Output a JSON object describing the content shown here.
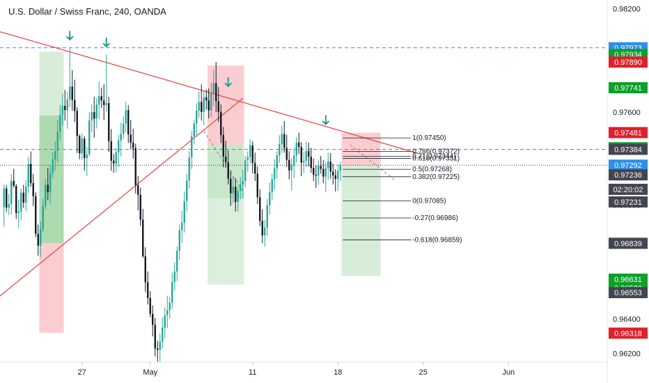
{
  "header": {
    "title": "U.S. Dollar / Swiss Franc, 240, OANDA"
  },
  "colors": {
    "up": "#26a69a",
    "down": "#131722",
    "trend": "#e5403a",
    "hline": "#2d8fe6",
    "green_zone": "#4caf50",
    "red_zone": "#f23645",
    "arrow": "#1e9c8a"
  },
  "chart_data": {
    "type": "candlestick",
    "symbol": "U.S. Dollar / Swiss Franc",
    "timeframe": "240",
    "source": "OANDA",
    "y_range": [
      0.9615,
      0.9825
    ],
    "y_ticks": [
      {
        "value": 0.982,
        "label": "0.98200"
      },
      {
        "value": 0.976,
        "label": "0.97600"
      },
      {
        "value": 0.9706,
        "label": "0.97060"
      },
      {
        "value": 0.964,
        "label": "0.96400"
      },
      {
        "value": 0.962,
        "label": "0.96200"
      }
    ],
    "x_ticks": [
      {
        "index": 32,
        "label": "27"
      },
      {
        "index": 60,
        "label": "May"
      },
      {
        "index": 102,
        "label": "11"
      },
      {
        "index": 137,
        "label": "18"
      },
      {
        "index": 172,
        "label": "25"
      },
      {
        "index": 207,
        "label": "Jun"
      }
    ],
    "price_badges": [
      {
        "value": 0.97973,
        "label": "0.97973",
        "color": "#2d8fe6"
      },
      {
        "value": 0.97934,
        "label": "0.97934",
        "color": "#0e9f2c"
      },
      {
        "value": 0.9789,
        "label": "0.97890",
        "color": "#e0202b"
      },
      {
        "value": 0.97741,
        "label": "0.97741",
        "color": "#0e9f2c"
      },
      {
        "value": 0.97481,
        "label": "0.97481",
        "color": "#e0202b"
      },
      {
        "value": 0.97393,
        "label": "0.97393",
        "color": "#0e9f2c"
      },
      {
        "value": 0.97384,
        "label": "0.97384",
        "color": "#434651"
      },
      {
        "value": 0.97292,
        "label": "0.97292",
        "color": "#2d8fe6"
      },
      {
        "value": 0.97236,
        "label": "0.97236",
        "color": "#434651"
      },
      {
        "value": 0.97152,
        "label": "02:20:02",
        "color": "#434651"
      },
      {
        "value": 0.97079,
        "label": "0.97231",
        "color": "#434651"
      },
      {
        "value": 0.96839,
        "label": "0.96839",
        "color": "#434651"
      },
      {
        "value": 0.96631,
        "label": "0.96631",
        "color": "#0e9f2c"
      },
      {
        "value": 0.9658,
        "label": "0.96580",
        "color": "#0e9f2c"
      },
      {
        "value": 0.96553,
        "label": "0.96553",
        "color": "#434651"
      },
      {
        "value": 0.96318,
        "label": "0.96318",
        "color": "#e0202b"
      }
    ],
    "h_lines": [
      0.97973,
      0.97384
    ],
    "current_price": 0.97292,
    "fib": {
      "x_start": 139,
      "x_end": 167,
      "levels": [
        {
          "value": 0.9745,
          "label": "1(0.97450)"
        },
        {
          "value": 0.97372,
          "label": "0.786(0.97372)"
        },
        {
          "value": 0.97344,
          "label": "0.71(0.97344)"
        },
        {
          "value": 0.97331,
          "label": "0.618(0.97331)"
        },
        {
          "value": 0.97268,
          "label": "0.5(0.97268)"
        },
        {
          "value": 0.97225,
          "label": "0.382(0.97225)"
        },
        {
          "value": 0.97085,
          "label": "0(0.97085)"
        },
        {
          "value": 0.96986,
          "label": "-0.27(0.96986)"
        },
        {
          "value": 0.96859,
          "label": "-0.618(0.96859)"
        }
      ]
    },
    "trendlines": [
      {
        "from": [
          -15,
          0.9812
        ],
        "to": [
          22,
          0.9797
        ]
      },
      {
        "from": [
          22,
          0.9797
        ],
        "to": [
          170,
          0.9736
        ]
      },
      {
        "from": [
          -15,
          0.9638
        ],
        "to": [
          98,
          0.9768
        ]
      }
    ],
    "dashed_path": [
      [
        82,
        0.9749
      ],
      [
        98,
        0.9714
      ]
    ],
    "dashed_path_2": [
      [
        142,
        0.9741
      ],
      [
        160,
        0.9721
      ]
    ],
    "position_zones": [
      {
        "x0": 15,
        "x1": 24,
        "y0": 0.9795,
        "y1": 0.9684,
        "color": "green",
        "opacity": 0.22
      },
      {
        "x0": 15,
        "x1": 24,
        "y0": 0.9758,
        "y1": 0.9684,
        "color": "green",
        "opacity": 0.3
      },
      {
        "x0": 15,
        "x1": 24,
        "y0": 0.9684,
        "y1": 0.9632,
        "color": "red",
        "opacity": 0.25
      },
      {
        "x0": 84,
        "x1": 98,
        "y0": 0.9787,
        "y1": 0.9741,
        "color": "red",
        "opacity": 0.25
      },
      {
        "x0": 84,
        "x1": 98,
        "y0": 0.9741,
        "y1": 0.971,
        "color": "green",
        "opacity": 0.3
      },
      {
        "x0": 84,
        "x1": 98,
        "y0": 0.971,
        "y1": 0.966,
        "color": "green",
        "opacity": 0.2
      },
      {
        "x0": 139,
        "x1": 154,
        "y0": 0.9748,
        "y1": 0.9729,
        "color": "red",
        "opacity": 0.25
      },
      {
        "x0": 139,
        "x1": 154,
        "y0": 0.9729,
        "y1": 0.9665,
        "color": "green",
        "opacity": 0.22
      }
    ],
    "arrows": [
      {
        "index": 27,
        "value": 0.9802
      },
      {
        "index": 42,
        "value": 0.9798
      },
      {
        "index": 92,
        "value": 0.9775
      },
      {
        "index": 132,
        "value": 0.9753
      }
    ],
    "candles": [
      [
        0.97048,
        0.9718,
        0.96936,
        0.97157
      ],
      [
        0.97157,
        0.97175,
        0.97022,
        0.97046
      ],
      [
        0.97046,
        0.97125,
        0.97002,
        0.97066
      ],
      [
        0.97066,
        0.9724,
        0.97006,
        0.97201
      ],
      [
        0.97201,
        0.9727,
        0.97161,
        0.97172
      ],
      [
        0.97172,
        0.97183,
        0.9698,
        0.97014
      ],
      [
        0.97014,
        0.97093,
        0.96927,
        0.97023
      ],
      [
        0.97023,
        0.97156,
        0.96972,
        0.97133
      ],
      [
        0.97133,
        0.97178,
        0.97045,
        0.97075
      ],
      [
        0.97075,
        0.97205,
        0.97026,
        0.97168
      ],
      [
        0.97168,
        0.9734,
        0.9713,
        0.97299
      ],
      [
        0.97299,
        0.97371,
        0.97167,
        0.97188
      ],
      [
        0.97188,
        0.97242,
        0.97055,
        0.97112
      ],
      [
        0.97112,
        0.97135,
        0.96874,
        0.96894
      ],
      [
        0.96894,
        0.96948,
        0.96767,
        0.96825
      ],
      [
        0.96825,
        0.96966,
        0.96758,
        0.96922
      ],
      [
        0.96922,
        0.97099,
        0.96901,
        0.97057
      ],
      [
        0.97057,
        0.97214,
        0.97036,
        0.97178
      ],
      [
        0.97178,
        0.97276,
        0.97088,
        0.97135
      ],
      [
        0.97135,
        0.9729,
        0.97063,
        0.97248
      ],
      [
        0.97248,
        0.97367,
        0.97215,
        0.97326
      ],
      [
        0.97326,
        0.97432,
        0.97262,
        0.97375
      ],
      [
        0.97375,
        0.97555,
        0.97308,
        0.97487
      ],
      [
        0.97487,
        0.97641,
        0.97437,
        0.97583
      ],
      [
        0.97583,
        0.97706,
        0.97525,
        0.97636
      ],
      [
        0.97636,
        0.97728,
        0.97551,
        0.97611
      ],
      [
        0.97611,
        0.97717,
        0.97504,
        0.97673
      ],
      [
        0.97673,
        0.97973,
        0.97628,
        0.97748
      ],
      [
        0.97748,
        0.97844,
        0.97608,
        0.9767
      ],
      [
        0.9767,
        0.97788,
        0.97542,
        0.97607
      ],
      [
        0.97607,
        0.97629,
        0.97362,
        0.97461
      ],
      [
        0.97461,
        0.97471,
        0.97326,
        0.97361
      ],
      [
        0.97361,
        0.97476,
        0.97324,
        0.97446
      ],
      [
        0.97446,
        0.97461,
        0.97259,
        0.97333
      ],
      [
        0.97333,
        0.97398,
        0.9723,
        0.97355
      ],
      [
        0.97355,
        0.976,
        0.9734,
        0.97552
      ],
      [
        0.97552,
        0.97644,
        0.97483,
        0.976
      ],
      [
        0.976,
        0.9769,
        0.97452,
        0.97562
      ],
      [
        0.97562,
        0.97681,
        0.97505,
        0.97643
      ],
      [
        0.97643,
        0.97777,
        0.97557,
        0.97692
      ],
      [
        0.97692,
        0.97742,
        0.97624,
        0.97667
      ],
      [
        0.97667,
        0.97761,
        0.97553,
        0.97641
      ],
      [
        0.97641,
        0.97934,
        0.97601,
        0.97652
      ],
      [
        0.97652,
        0.97688,
        0.97368,
        0.97431
      ],
      [
        0.97431,
        0.97502,
        0.9726,
        0.97318
      ],
      [
        0.97318,
        0.97357,
        0.97248,
        0.97302
      ],
      [
        0.97302,
        0.97391,
        0.97248,
        0.97367
      ],
      [
        0.97367,
        0.97467,
        0.9728,
        0.97436
      ],
      [
        0.97436,
        0.97539,
        0.97342,
        0.97474
      ],
      [
        0.97474,
        0.97576,
        0.97446,
        0.97533
      ],
      [
        0.97533,
        0.9766,
        0.97482,
        0.97611
      ],
      [
        0.97611,
        0.9764,
        0.97421,
        0.9747
      ],
      [
        0.9747,
        0.97555,
        0.97384,
        0.97423
      ],
      [
        0.97423,
        0.97504,
        0.97331,
        0.97391
      ],
      [
        0.97391,
        0.97416,
        0.97128,
        0.97177
      ],
      [
        0.97177,
        0.97229,
        0.9703,
        0.9712
      ],
      [
        0.9712,
        0.97162,
        0.9694,
        0.96976
      ],
      [
        0.96976,
        0.97039,
        0.96754,
        0.96764
      ],
      [
        0.96764,
        0.96816,
        0.96556,
        0.96613
      ],
      [
        0.96613,
        0.96676,
        0.96484,
        0.96522
      ],
      [
        0.96522,
        0.96561,
        0.9641,
        0.9643
      ],
      [
        0.9643,
        0.96478,
        0.96299,
        0.96366
      ],
      [
        0.96366,
        0.96407,
        0.96183,
        0.96229
      ],
      [
        0.96229,
        0.96274,
        0.96123,
        0.96221
      ],
      [
        0.96221,
        0.96313,
        0.96136,
        0.96269
      ],
      [
        0.96269,
        0.9641,
        0.96228,
        0.9635
      ],
      [
        0.9635,
        0.96466,
        0.96288,
        0.96422
      ],
      [
        0.96422,
        0.96535,
        0.96347,
        0.96451
      ],
      [
        0.96451,
        0.96527,
        0.96403,
        0.96495
      ],
      [
        0.96495,
        0.96669,
        0.96459,
        0.96615
      ],
      [
        0.96615,
        0.96728,
        0.96567,
        0.96675
      ],
      [
        0.96675,
        0.9682,
        0.9662,
        0.96796
      ],
      [
        0.96796,
        0.96948,
        0.96741,
        0.96915
      ],
      [
        0.96915,
        0.97027,
        0.96842,
        0.9696
      ],
      [
        0.9696,
        0.97139,
        0.96901,
        0.97084
      ],
      [
        0.97084,
        0.97243,
        0.97024,
        0.97202
      ],
      [
        0.97202,
        0.97372,
        0.97158,
        0.97337
      ],
      [
        0.97337,
        0.9749,
        0.9727,
        0.97459
      ],
      [
        0.97459,
        0.97556,
        0.97412,
        0.97535
      ],
      [
        0.97535,
        0.97652,
        0.97467,
        0.97608
      ],
      [
        0.97608,
        0.9772,
        0.97567,
        0.97659
      ],
      [
        0.97659,
        0.97761,
        0.97551,
        0.97601
      ],
      [
        0.97601,
        0.97728,
        0.97526,
        0.97686
      ],
      [
        0.97686,
        0.97731,
        0.97615,
        0.97667
      ],
      [
        0.97667,
        0.97737,
        0.97563,
        0.9761
      ],
      [
        0.9761,
        0.9777,
        0.97571,
        0.97709
      ],
      [
        0.97709,
        0.97847,
        0.97633,
        0.97768
      ],
      [
        0.97768,
        0.9789,
        0.97599,
        0.97663
      ],
      [
        0.97663,
        0.97745,
        0.97543,
        0.97601
      ],
      [
        0.97601,
        0.97645,
        0.97421,
        0.97467
      ],
      [
        0.97467,
        0.97514,
        0.9728,
        0.97342
      ],
      [
        0.97342,
        0.97434,
        0.97276,
        0.97309
      ],
      [
        0.97309,
        0.97377,
        0.9718,
        0.97214
      ],
      [
        0.97214,
        0.97262,
        0.97057,
        0.97129
      ],
      [
        0.97129,
        0.97224,
        0.97072,
        0.97167
      ],
      [
        0.97167,
        0.97217,
        0.97023,
        0.97079
      ],
      [
        0.97079,
        0.97167,
        0.97024,
        0.97143
      ],
      [
        0.97143,
        0.97222,
        0.97094,
        0.9718
      ],
      [
        0.9718,
        0.97264,
        0.97099,
        0.97201
      ],
      [
        0.97201,
        0.97345,
        0.97165,
        0.97321
      ],
      [
        0.97321,
        0.97372,
        0.97251,
        0.97339
      ],
      [
        0.97339,
        0.9744,
        0.97301,
        0.97407
      ],
      [
        0.97407,
        0.9743,
        0.97244,
        0.97305
      ],
      [
        0.97305,
        0.97365,
        0.972,
        0.97243
      ],
      [
        0.97243,
        0.97284,
        0.97067,
        0.97106
      ],
      [
        0.97106,
        0.97152,
        0.96938,
        0.96969
      ],
      [
        0.96969,
        0.97036,
        0.9684,
        0.96885
      ],
      [
        0.96885,
        0.96973,
        0.9682,
        0.96931
      ],
      [
        0.96931,
        0.97095,
        0.96881,
        0.97059
      ],
      [
        0.97059,
        0.97193,
        0.97005,
        0.97137
      ],
      [
        0.97137,
        0.97243,
        0.9709,
        0.97212
      ],
      [
        0.97212,
        0.97326,
        0.9715,
        0.97274
      ],
      [
        0.97274,
        0.97372,
        0.97215,
        0.97349
      ],
      [
        0.97349,
        0.97466,
        0.97304,
        0.97414
      ],
      [
        0.97414,
        0.97522,
        0.97363,
        0.97473
      ],
      [
        0.97473,
        0.97548,
        0.97364,
        0.97392
      ],
      [
        0.97392,
        0.97468,
        0.97282,
        0.97323
      ],
      [
        0.97323,
        0.97373,
        0.9721,
        0.97262
      ],
      [
        0.97262,
        0.97333,
        0.97145,
        0.97292
      ],
      [
        0.97292,
        0.97394,
        0.97218,
        0.97348
      ],
      [
        0.97348,
        0.97453,
        0.97307,
        0.97423
      ],
      [
        0.97423,
        0.97481,
        0.97357,
        0.97398
      ],
      [
        0.97398,
        0.97426,
        0.97228,
        0.97307
      ],
      [
        0.97307,
        0.97371,
        0.97247,
        0.97318
      ],
      [
        0.97318,
        0.97429,
        0.97282,
        0.97374
      ],
      [
        0.97374,
        0.97422,
        0.97284,
        0.97341
      ],
      [
        0.97341,
        0.97393,
        0.97247,
        0.97276
      ],
      [
        0.97276,
        0.9733,
        0.972,
        0.97236
      ],
      [
        0.97236,
        0.97292,
        0.9716,
        0.97231
      ],
      [
        0.97231,
        0.97318,
        0.97178,
        0.97287
      ],
      [
        0.97287,
        0.97346,
        0.97243,
        0.9727
      ],
      [
        0.9727,
        0.97321,
        0.97188,
        0.97226
      ],
      [
        0.97226,
        0.97306,
        0.97135,
        0.97276
      ],
      [
        0.97276,
        0.97364,
        0.97206,
        0.97313
      ],
      [
        0.97313,
        0.97362,
        0.97214,
        0.97255
      ],
      [
        0.97255,
        0.97301,
        0.9718,
        0.97233
      ],
      [
        0.97233,
        0.97269,
        0.9714,
        0.97212
      ],
      [
        0.97212,
        0.97296,
        0.97144,
        0.97259
      ],
      [
        0.97259,
        0.9731,
        0.972,
        0.97292
      ]
    ]
  }
}
